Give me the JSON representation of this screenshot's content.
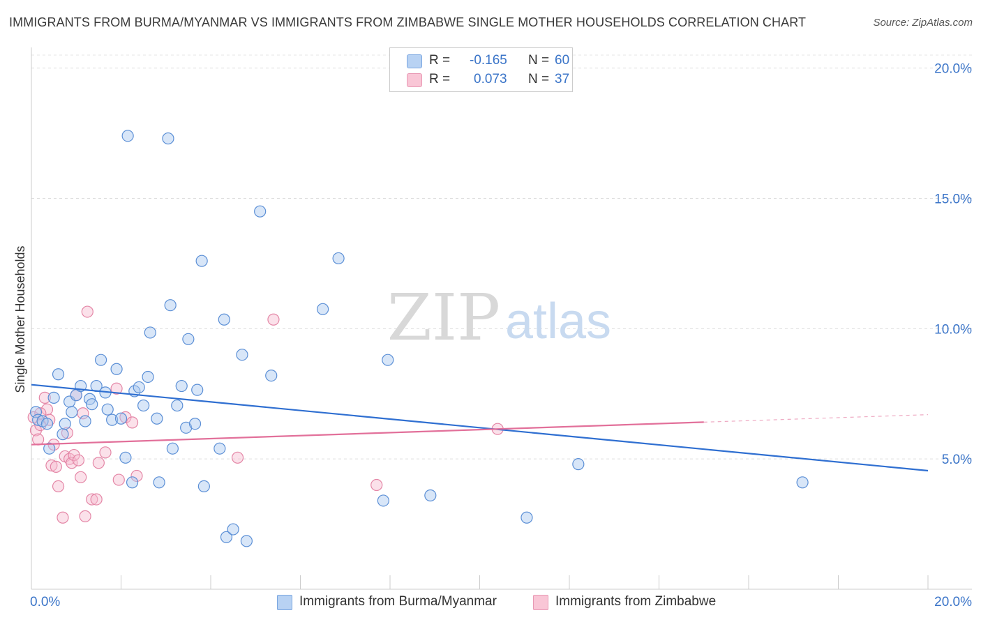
{
  "header": {
    "title": "IMMIGRANTS FROM BURMA/MYANMAR VS IMMIGRANTS FROM ZIMBABWE SINGLE MOTHER HOUSEHOLDS CORRELATION CHART",
    "source": "Source: ZipAtlas.com"
  },
  "watermark": {
    "zip": "ZIP",
    "atlas": "atlas"
  },
  "legend": {
    "r_label": "R =",
    "n_label": "N =",
    "rows": [
      {
        "r": "-0.165",
        "n": "60"
      },
      {
        "r": "0.073",
        "n": "37"
      }
    ]
  },
  "colors": {
    "burma_fill": "#a9c8f0",
    "burma_stroke": "#5b8fd6",
    "burma_line": "#2f6fd1",
    "zimbabwe_fill": "#f7bcd0",
    "zimbabwe_stroke": "#e486a6",
    "zimbabwe_line": "#e2709a",
    "axis_text": "#3a74c8"
  },
  "chart_data": {
    "type": "scatter",
    "title": "IMMIGRANTS FROM BURMA/MYANMAR VS IMMIGRANTS FROM ZIMBABWE SINGLE MOTHER HOUSEHOLDS CORRELATION CHART",
    "xlabel": "",
    "ylabel": "Single Mother Households",
    "xlim": [
      0,
      20
    ],
    "ylim": [
      0,
      20.5
    ],
    "x_tick_labels": [
      "0.0%",
      "20.0%"
    ],
    "y_tick_labels": [
      "5.0%",
      "10.0%",
      "15.0%",
      "20.0%"
    ],
    "y_ticks": [
      5,
      10,
      15,
      20
    ],
    "grid": "horizontal dashed",
    "legend_position": "top-center",
    "series": [
      {
        "name": "Immigrants from Burma/Myanmar",
        "r": -0.165,
        "n": 60,
        "trend": {
          "x": [
            0,
            20
          ],
          "y": [
            7.85,
            4.55
          ],
          "dashed_from": null
        },
        "points": [
          [
            0.1,
            6.8
          ],
          [
            0.15,
            6.5
          ],
          [
            0.25,
            6.45
          ],
          [
            0.35,
            6.35
          ],
          [
            0.4,
            5.4
          ],
          [
            0.5,
            7.35
          ],
          [
            0.6,
            8.25
          ],
          [
            0.7,
            5.95
          ],
          [
            0.75,
            6.35
          ],
          [
            0.85,
            7.2
          ],
          [
            0.9,
            6.8
          ],
          [
            1.0,
            7.45
          ],
          [
            1.1,
            7.8
          ],
          [
            1.2,
            6.45
          ],
          [
            1.3,
            7.3
          ],
          [
            1.35,
            7.1
          ],
          [
            1.45,
            7.8
          ],
          [
            1.55,
            8.8
          ],
          [
            1.65,
            7.55
          ],
          [
            1.7,
            6.9
          ],
          [
            1.8,
            6.5
          ],
          [
            1.9,
            8.45
          ],
          [
            2.0,
            6.55
          ],
          [
            2.1,
            5.05
          ],
          [
            2.15,
            17.4
          ],
          [
            2.25,
            4.1
          ],
          [
            2.3,
            7.6
          ],
          [
            2.4,
            7.75
          ],
          [
            2.5,
            7.05
          ],
          [
            2.6,
            8.15
          ],
          [
            2.65,
            9.85
          ],
          [
            2.8,
            6.55
          ],
          [
            2.85,
            4.1
          ],
          [
            3.05,
            17.3
          ],
          [
            3.1,
            10.9
          ],
          [
            3.15,
            5.4
          ],
          [
            3.25,
            7.05
          ],
          [
            3.35,
            7.8
          ],
          [
            3.45,
            6.2
          ],
          [
            3.5,
            9.6
          ],
          [
            3.65,
            6.35
          ],
          [
            3.7,
            7.65
          ],
          [
            3.8,
            12.6
          ],
          [
            3.85,
            3.95
          ],
          [
            4.2,
            5.4
          ],
          [
            4.3,
            10.35
          ],
          [
            4.35,
            2.0
          ],
          [
            4.5,
            2.3
          ],
          [
            4.7,
            9.0
          ],
          [
            4.8,
            1.85
          ],
          [
            5.1,
            14.5
          ],
          [
            5.35,
            8.2
          ],
          [
            6.5,
            10.75
          ],
          [
            6.85,
            12.7
          ],
          [
            7.85,
            3.4
          ],
          [
            7.95,
            8.8
          ],
          [
            8.9,
            3.6
          ],
          [
            11.05,
            2.75
          ],
          [
            12.2,
            4.8
          ],
          [
            17.2,
            4.1
          ]
        ]
      },
      {
        "name": "Immigrants from Zimbabwe",
        "r": 0.073,
        "n": 37,
        "trend": {
          "x": [
            0,
            20
          ],
          "y": [
            5.55,
            6.7
          ],
          "dashed_from": 15.0
        },
        "points": [
          [
            0.1,
            6.1
          ],
          [
            0.15,
            5.75
          ],
          [
            0.2,
            6.3
          ],
          [
            0.3,
            7.35
          ],
          [
            0.35,
            6.9
          ],
          [
            0.4,
            6.5
          ],
          [
            0.45,
            4.75
          ],
          [
            0.5,
            5.55
          ],
          [
            0.55,
            4.7
          ],
          [
            0.6,
            3.95
          ],
          [
            0.7,
            2.75
          ],
          [
            0.75,
            5.1
          ],
          [
            0.8,
            6.0
          ],
          [
            0.85,
            5.0
          ],
          [
            0.9,
            4.85
          ],
          [
            0.95,
            5.15
          ],
          [
            1.0,
            7.45
          ],
          [
            1.05,
            4.95
          ],
          [
            1.1,
            4.3
          ],
          [
            1.15,
            6.75
          ],
          [
            1.2,
            2.8
          ],
          [
            1.25,
            10.65
          ],
          [
            1.35,
            3.45
          ],
          [
            1.45,
            3.45
          ],
          [
            1.5,
            4.85
          ],
          [
            1.65,
            5.25
          ],
          [
            1.9,
            7.7
          ],
          [
            1.95,
            4.2
          ],
          [
            2.1,
            6.6
          ],
          [
            2.25,
            6.4
          ],
          [
            2.35,
            4.35
          ],
          [
            4.6,
            5.05
          ],
          [
            5.4,
            10.35
          ],
          [
            7.7,
            4.0
          ],
          [
            10.4,
            6.15
          ],
          [
            0.05,
            6.6
          ],
          [
            0.2,
            6.75
          ]
        ]
      }
    ]
  },
  "bottom_legend": [
    {
      "label": "Immigrants from Burma/Myanmar"
    },
    {
      "label": "Immigrants from Zimbabwe"
    }
  ]
}
